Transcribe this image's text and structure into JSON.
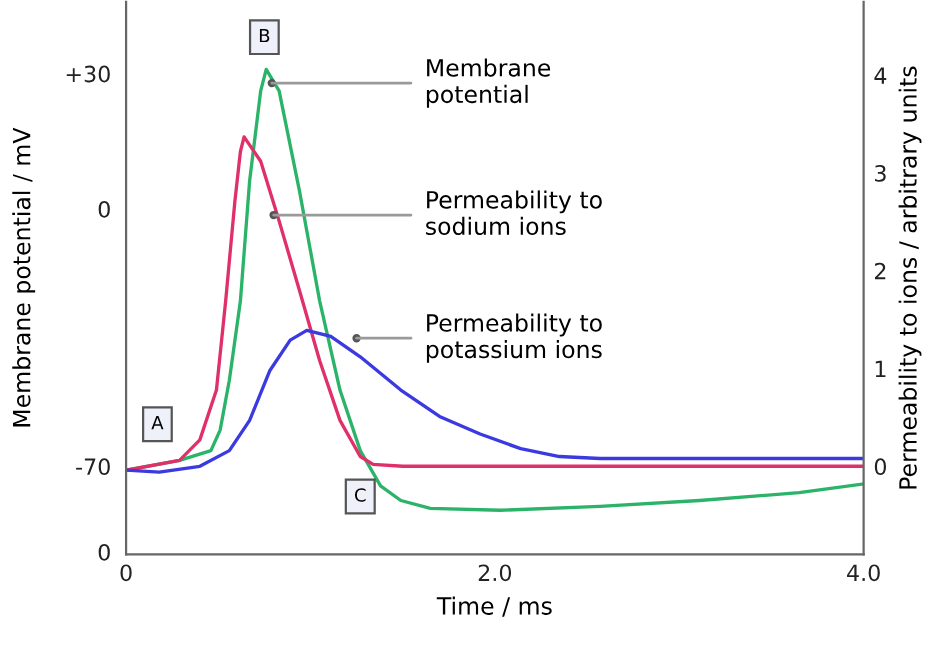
{
  "chart_data": {
    "type": "line",
    "xlabel": "Time / ms",
    "ylabel": "Permeability to ions / arbitrary units",
    "y2label": "Membrane potential / mV",
    "xlim": [
      0,
      4
    ],
    "xticks": [
      {
        "value": 0,
        "label": "0"
      },
      {
        "value": 2,
        "label": "2.0"
      },
      {
        "value": 4,
        "label": "4.0"
      }
    ],
    "ylim": [
      -0.9,
      4.75
    ],
    "yticks": [
      0,
      1,
      2,
      3,
      4
    ],
    "grid": false,
    "legend": false,
    "marker": "none",
    "line_style": "solid",
    "series": [
      {
        "color": "#2bb36a",
        "x": [
          0,
          0.29,
          0.46,
          0.51,
          0.56,
          0.62,
          0.67,
          0.73,
          0.76,
          0.83,
          0.94,
          1.05,
          1.16,
          1.27,
          1.38,
          1.49,
          1.65,
          2.03,
          2.57,
          3.11,
          3.65,
          4.0
        ],
        "values": [
          -0.04,
          0.06,
          0.16,
          0.37,
          0.88,
          1.69,
          2.92,
          3.84,
          4.06,
          3.84,
          2.82,
          1.69,
          0.78,
          0.16,
          -0.2,
          -0.35,
          -0.43,
          -0.45,
          -0.41,
          -0.35,
          -0.27,
          -0.18
        ]
      },
      {
        "color": "#e0306a",
        "x": [
          0,
          0.29,
          0.4,
          0.49,
          0.54,
          0.59,
          0.62,
          0.64,
          0.73,
          0.83,
          0.94,
          1.05,
          1.16,
          1.27,
          1.34,
          1.5,
          2.5,
          4.0
        ],
        "values": [
          -0.04,
          0.06,
          0.27,
          0.78,
          1.69,
          2.71,
          3.22,
          3.37,
          3.12,
          2.51,
          1.8,
          1.08,
          0.47,
          0.1,
          0.02,
          0,
          0,
          0
        ]
      },
      {
        "color": "#3a3ae0",
        "x": [
          0,
          0.18,
          0.4,
          0.56,
          0.67,
          0.78,
          0.89,
          0.98,
          1.11,
          1.27,
          1.49,
          1.7,
          1.92,
          2.14,
          2.35,
          2.57,
          4.0
        ],
        "values": [
          -0.04,
          -0.06,
          0,
          0.16,
          0.47,
          0.98,
          1.29,
          1.39,
          1.33,
          1.12,
          0.78,
          0.51,
          0.33,
          0.18,
          0.1,
          0.08,
          0.08
        ]
      }
    ],
    "annotations": [
      {
        "text": "Membrane\npotential",
        "x": 0.79,
        "y": 3.92
      },
      {
        "text": "Permeability to\nsodium ions",
        "x": 0.8,
        "y": 2.57
      },
      {
        "text": "Permeability to\npotassium ions",
        "x": 1.25,
        "y": 1.31
      },
      {
        "text": "A",
        "x": 0.17,
        "y": 0.43
      },
      {
        "text": "B",
        "x": 0.75,
        "y": 4.39
      },
      {
        "text": "C",
        "x": 1.27,
        "y": -0.31
      },
      "+30",
      "0",
      "-70",
      "0"
    ]
  }
}
